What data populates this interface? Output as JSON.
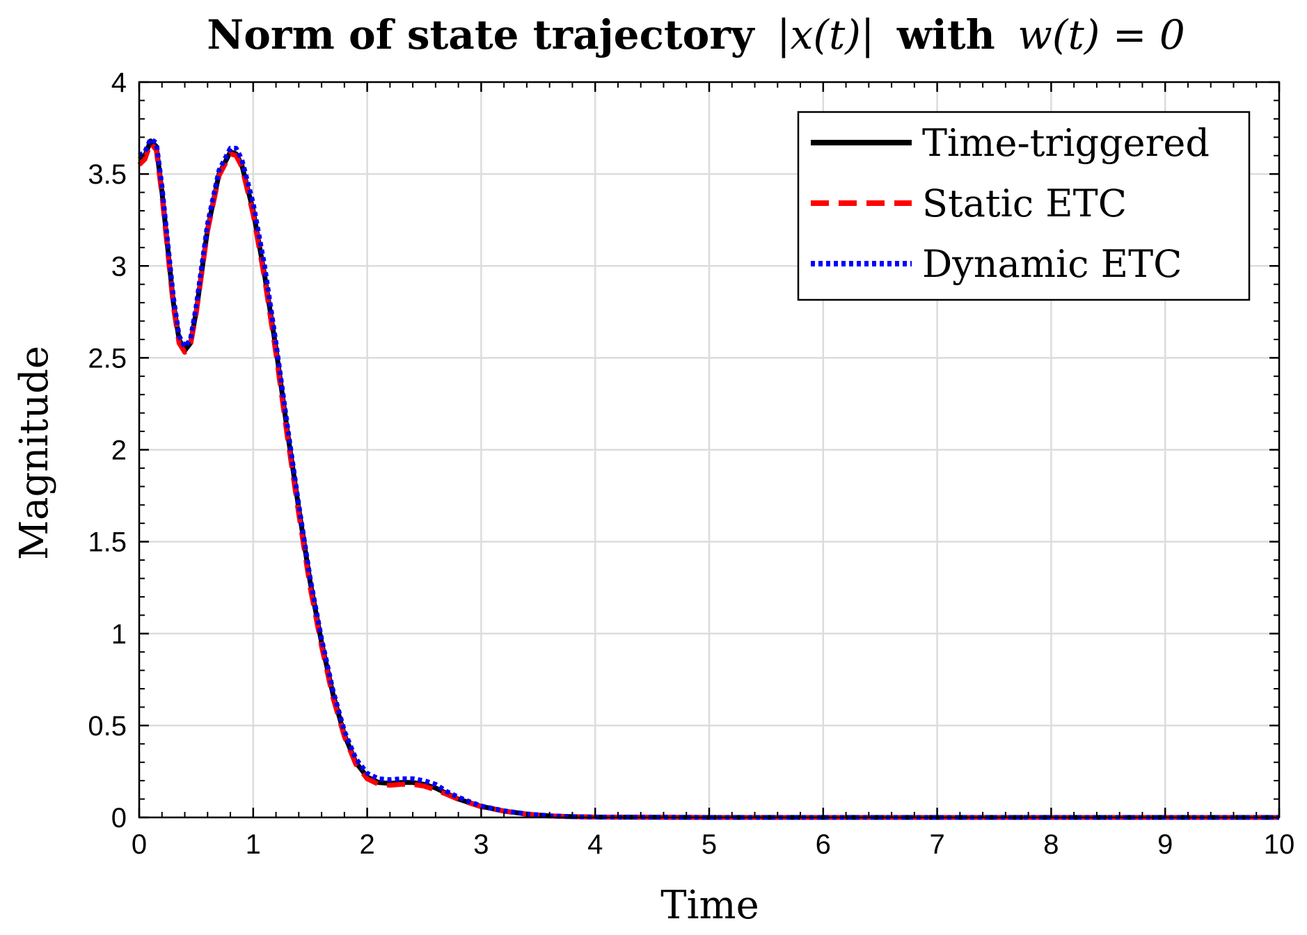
{
  "chart_data": {
    "type": "line",
    "title_parts": {
      "bold_text": "Norm of state trajectory",
      "math_norm": "|x(t)|",
      "with": "with",
      "math_cond": "w(t) = 0"
    },
    "xlabel": "Time",
    "ylabel": "Magnitude",
    "xlim": [
      0,
      10
    ],
    "ylim": [
      0,
      4
    ],
    "xticks": [
      0,
      1,
      2,
      3,
      4,
      5,
      6,
      7,
      8,
      9,
      10
    ],
    "yticks": [
      0,
      0.5,
      1,
      1.5,
      2,
      2.5,
      3,
      3.5,
      4
    ],
    "xtick_labels": [
      "0",
      "1",
      "2",
      "3",
      "4",
      "5",
      "6",
      "7",
      "8",
      "9",
      "10"
    ],
    "ytick_labels": [
      "0",
      "0.5",
      "1",
      "1.5",
      "2",
      "2.5",
      "3",
      "3.5",
      "4"
    ],
    "grid": true,
    "legend_position": "top-right",
    "series": [
      {
        "name": "Time-triggered",
        "color": "#000000",
        "style": "solid",
        "x": [
          0,
          0.05,
          0.1,
          0.15,
          0.2,
          0.25,
          0.3,
          0.35,
          0.4,
          0.45,
          0.5,
          0.6,
          0.7,
          0.8,
          0.85,
          0.9,
          1.0,
          1.1,
          1.2,
          1.3,
          1.4,
          1.5,
          1.6,
          1.7,
          1.8,
          1.9,
          2.0,
          2.1,
          2.2,
          2.3,
          2.4,
          2.5,
          2.6,
          2.7,
          2.8,
          2.9,
          3.0,
          3.2,
          3.4,
          3.6,
          3.8,
          4.0,
          4.5,
          5.0,
          6.0,
          7.0,
          8.0,
          9.0,
          10.0
        ],
        "y": [
          3.58,
          3.6,
          3.68,
          3.65,
          3.4,
          3.1,
          2.8,
          2.6,
          2.54,
          2.58,
          2.75,
          3.2,
          3.5,
          3.62,
          3.61,
          3.55,
          3.3,
          2.95,
          2.55,
          2.1,
          1.68,
          1.28,
          0.95,
          0.67,
          0.45,
          0.3,
          0.22,
          0.19,
          0.185,
          0.19,
          0.19,
          0.18,
          0.16,
          0.13,
          0.1,
          0.08,
          0.06,
          0.035,
          0.018,
          0.008,
          0.004,
          0.002,
          0.001,
          0.0,
          0.0,
          0.0,
          0.0,
          0.0,
          0.0
        ]
      },
      {
        "name": "Static ETC",
        "color": "#ff0000",
        "style": "dashed",
        "x": [
          0,
          0.05,
          0.1,
          0.15,
          0.2,
          0.25,
          0.3,
          0.35,
          0.4,
          0.45,
          0.5,
          0.6,
          0.7,
          0.8,
          0.85,
          0.9,
          1.0,
          1.1,
          1.2,
          1.3,
          1.4,
          1.5,
          1.6,
          1.7,
          1.8,
          1.9,
          2.0,
          2.1,
          2.2,
          2.3,
          2.4,
          2.5,
          2.6,
          2.7,
          2.8,
          2.9,
          3.0,
          3.2,
          3.4,
          3.6,
          3.8,
          4.0,
          4.5,
          5.0,
          6.0,
          7.0,
          8.0,
          9.0,
          10.0
        ],
        "y": [
          3.55,
          3.58,
          3.67,
          3.63,
          3.38,
          3.08,
          2.78,
          2.58,
          2.53,
          2.57,
          2.74,
          3.19,
          3.49,
          3.61,
          3.6,
          3.54,
          3.28,
          2.93,
          2.52,
          2.07,
          1.65,
          1.25,
          0.93,
          0.65,
          0.44,
          0.29,
          0.21,
          0.18,
          0.175,
          0.18,
          0.18,
          0.17,
          0.15,
          0.125,
          0.098,
          0.078,
          0.058,
          0.034,
          0.017,
          0.008,
          0.004,
          0.002,
          0.001,
          0.0,
          0.0,
          0.0,
          0.0,
          0.0,
          0.0
        ]
      },
      {
        "name": "Dynamic ETC",
        "color": "#0000ff",
        "style": "dotted",
        "x": [
          0,
          0.05,
          0.1,
          0.15,
          0.2,
          0.25,
          0.3,
          0.35,
          0.4,
          0.45,
          0.5,
          0.6,
          0.7,
          0.8,
          0.85,
          0.9,
          1.0,
          1.1,
          1.2,
          1.3,
          1.4,
          1.5,
          1.6,
          1.7,
          1.8,
          1.9,
          2.0,
          2.1,
          2.2,
          2.3,
          2.4,
          2.5,
          2.6,
          2.7,
          2.8,
          2.9,
          3.0,
          3.2,
          3.4,
          3.6,
          3.8,
          4.0,
          4.5,
          5.0,
          6.0,
          7.0,
          8.0,
          9.0,
          10.0
        ],
        "y": [
          3.6,
          3.62,
          3.69,
          3.67,
          3.43,
          3.13,
          2.83,
          2.62,
          2.56,
          2.6,
          2.78,
          3.23,
          3.52,
          3.64,
          3.64,
          3.58,
          3.34,
          3.0,
          2.58,
          2.13,
          1.7,
          1.3,
          0.97,
          0.69,
          0.47,
          0.32,
          0.24,
          0.21,
          0.205,
          0.21,
          0.21,
          0.2,
          0.18,
          0.14,
          0.11,
          0.085,
          0.062,
          0.036,
          0.019,
          0.009,
          0.004,
          0.002,
          0.001,
          0.0,
          0.0,
          0.0,
          0.0,
          0.0,
          0.0
        ]
      }
    ]
  }
}
